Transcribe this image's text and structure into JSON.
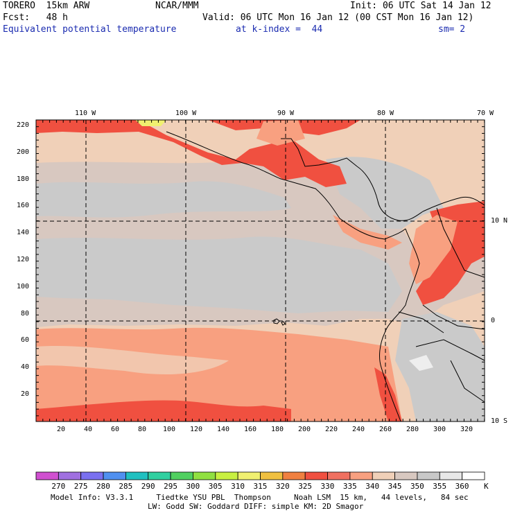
{
  "header": {
    "model_line": "TORERO  15km ARW",
    "center": "NCAR/MMM",
    "init": "Init: 06 UTC Sat 14 Jan 12",
    "fcst": "Fcst:   48 h",
    "valid": "Valid: 06 UTC Mon 16 Jan 12 (00 CST Mon 16 Jan 12)",
    "field": "Equivalent potential temperature",
    "level": "at k-index =  44",
    "smooth": "sm= 2"
  },
  "map": {
    "top_lon_labels": [
      "110 W",
      "100 W",
      "90 W",
      "80 W",
      "70 W"
    ],
    "right_lat_labels": [
      "10 N",
      "0",
      "10 S"
    ],
    "left_grid_labels": [
      "220",
      "200",
      "180",
      "160",
      "140",
      "120",
      "100",
      "80",
      "60",
      "40",
      "20"
    ],
    "bottom_grid_labels": [
      "20",
      "40",
      "60",
      "80",
      "100",
      "120",
      "140",
      "160",
      "180",
      "200",
      "220",
      "240",
      "260",
      "280",
      "300",
      "320"
    ]
  },
  "colorbar": {
    "unit": "K",
    "labels": [
      "270",
      "275",
      "280",
      "285",
      "290",
      "295",
      "300",
      "305",
      "310",
      "315",
      "320",
      "325",
      "330",
      "335",
      "340",
      "345",
      "350",
      "355",
      "360"
    ],
    "colors": [
      "#d050d0",
      "#a070e0",
      "#7a70f0",
      "#5090f0",
      "#20c0c0",
      "#30d0a0",
      "#50d060",
      "#90e040",
      "#c8f040",
      "#f0f070",
      "#f0c040",
      "#f08040",
      "#f05040",
      "#f07060",
      "#f8a080",
      "#f0d0b8",
      "#d8c8c0",
      "#c8c8c8",
      "#e8e8e8",
      "#ffffff"
    ]
  },
  "footer": {
    "line1": "Model Info: V3.3.1     Tiedtke YSU PBL  Thompson     Noah LSM  15 km,   44 levels,   84 sec",
    "line2": "LW: Godd SW: Goddard DIFF: simple KM: 2D Smagor"
  }
}
